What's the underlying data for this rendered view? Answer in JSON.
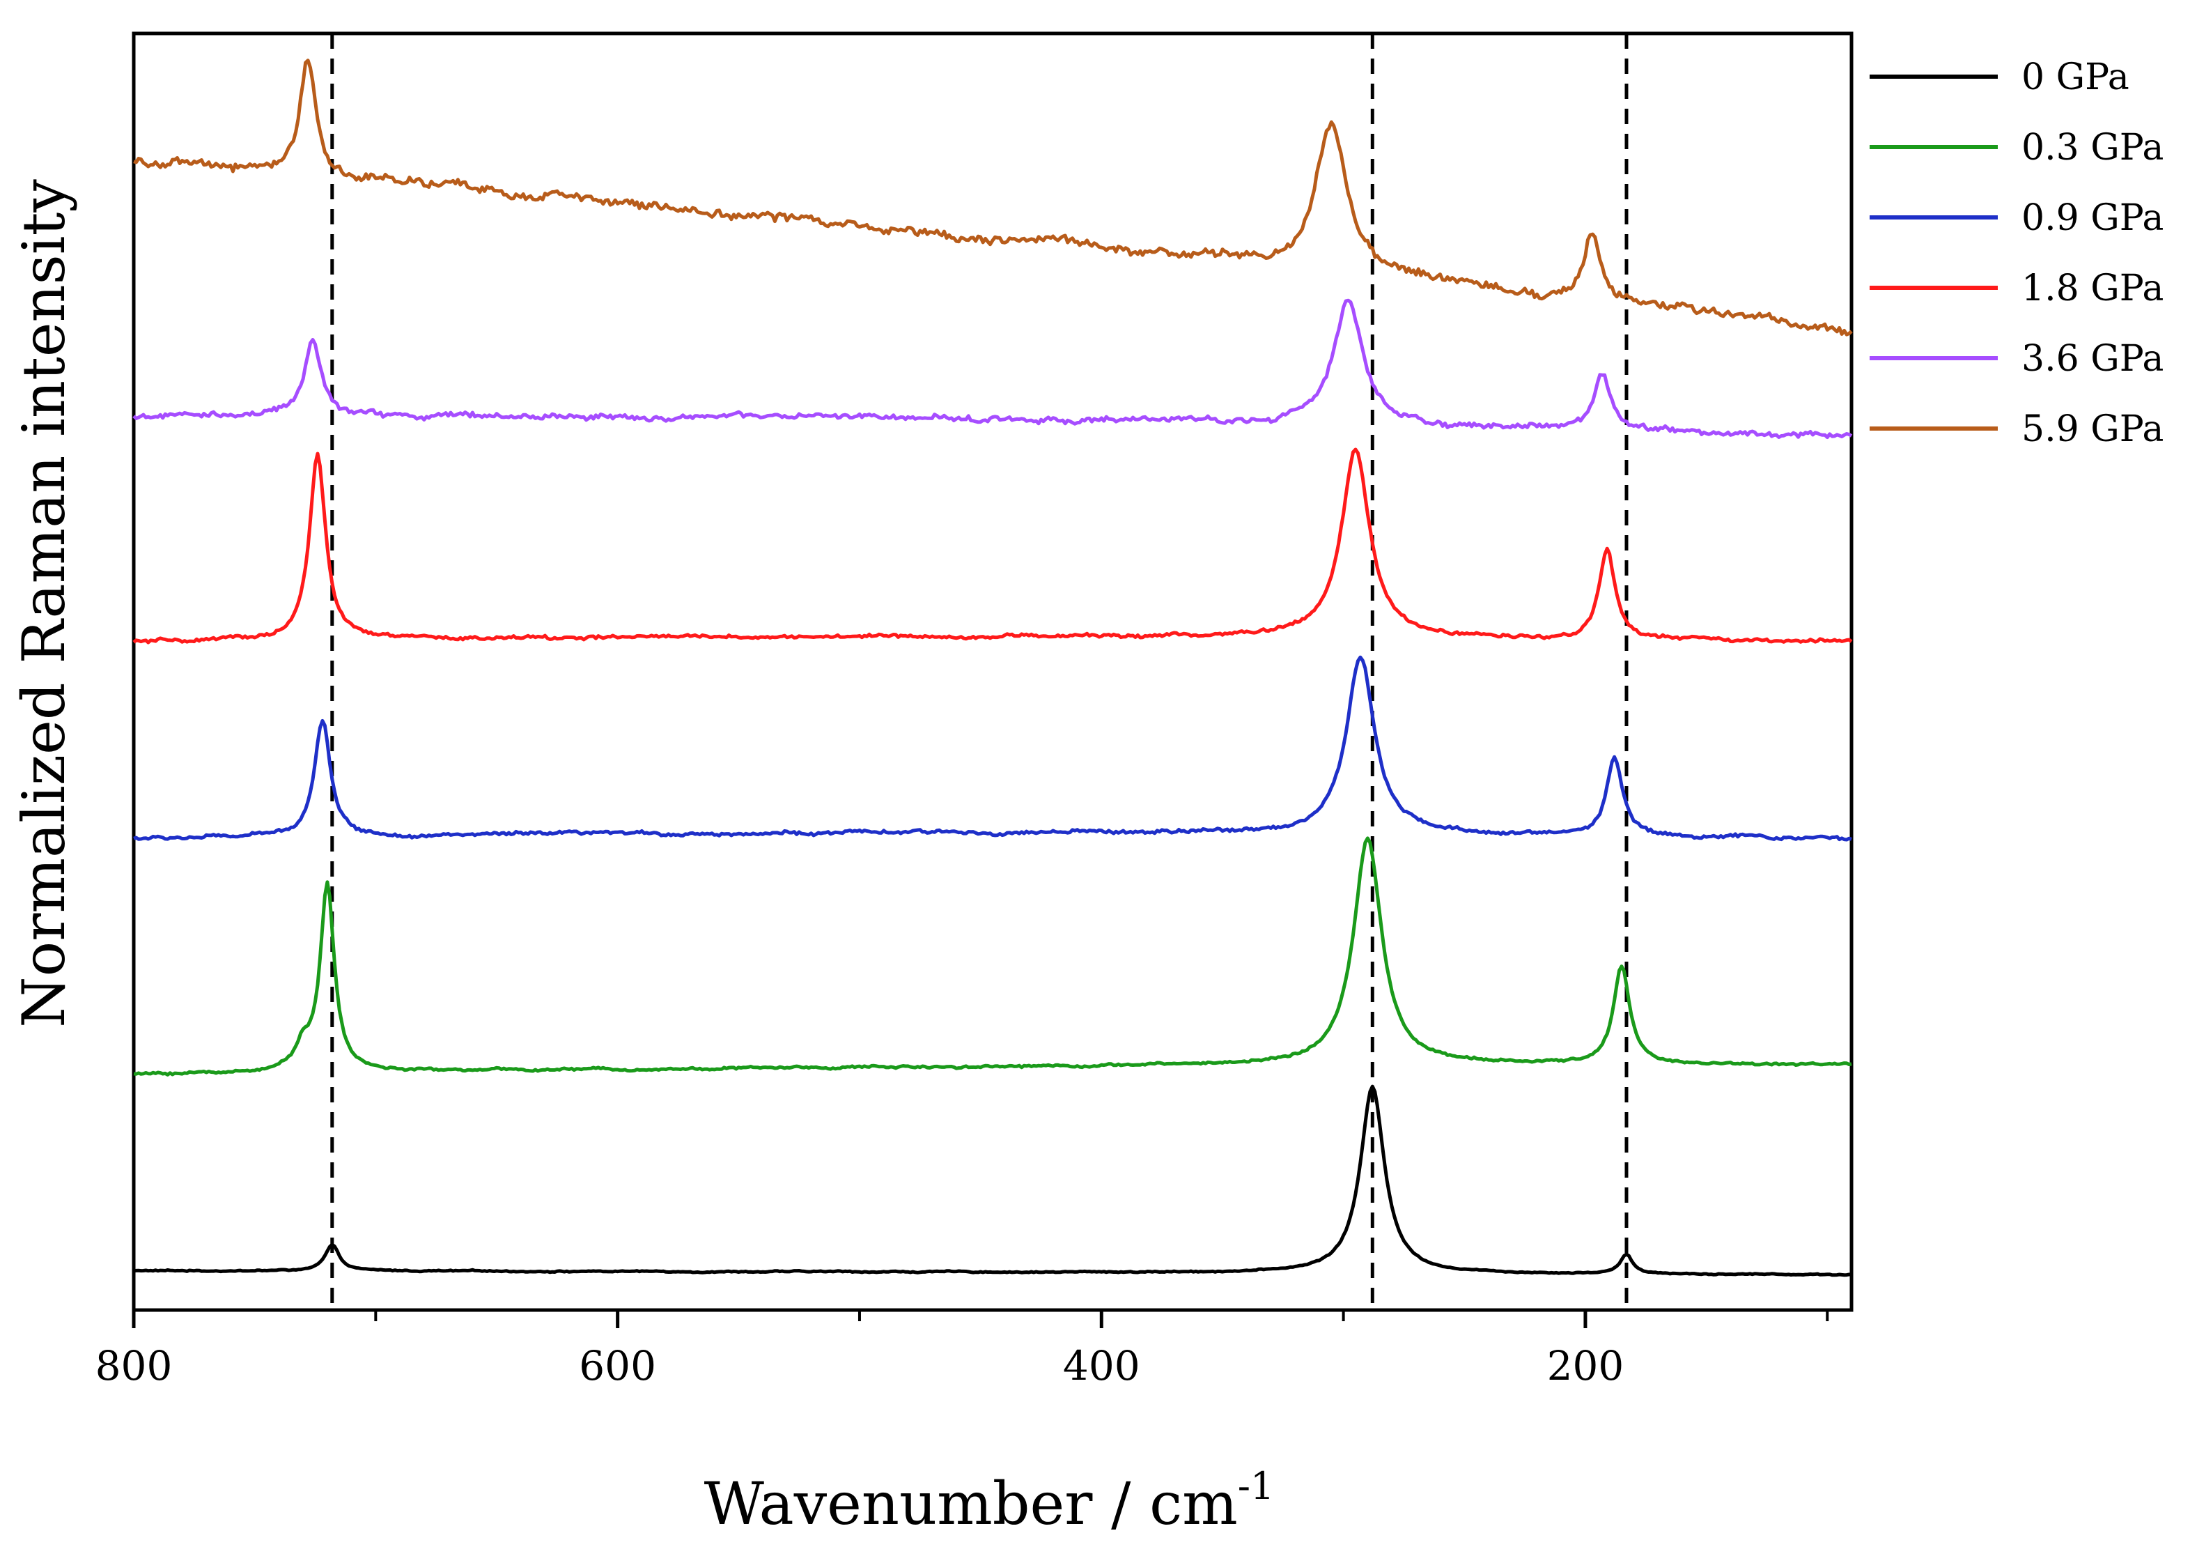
{
  "chart_data": {
    "type": "line",
    "title": "",
    "xlabel": "Wavenumber / cm",
    "xlabel_superscript": "-1",
    "ylabel": "Normalized Raman intensity",
    "xlim": [
      800,
      90
    ],
    "ylim": [
      0,
      6.5
    ],
    "x_ticks": [
      800,
      600,
      400,
      200
    ],
    "x_tick_labels": [
      "800",
      "600",
      "400",
      "200"
    ],
    "x_minor_ticks": [
      700,
      500,
      300,
      100
    ],
    "reference_lines": [
      718,
      288,
      183
    ],
    "grid": false,
    "legend_position": "outside-right-top",
    "series": [
      {
        "name": "0 GPa",
        "color": "#000000",
        "baseline": 0.2,
        "baseline_end": 0.18,
        "noise": 0.004,
        "tilt": -0.01,
        "peaks": [
          [
            718,
            0.13,
            3.5
          ],
          [
            288,
            0.95,
            6
          ],
          [
            183,
            0.1,
            3
          ]
        ]
      },
      {
        "name": "0.3 GPa",
        "color": "#1a9a1a",
        "baseline": 1.2,
        "baseline_end": 1.25,
        "noise": 0.008,
        "tilt": -0.05,
        "peaks": [
          [
            720,
            0.95,
            3.5
          ],
          [
            730,
            0.12,
            4
          ],
          [
            290,
            1.15,
            7
          ],
          [
            185,
            0.5,
            4
          ]
        ]
      },
      {
        "name": "0.9 GPa",
        "color": "#1e2fc8",
        "baseline": 2.4,
        "baseline_end": 2.4,
        "noise": 0.012,
        "tilt": -0.1,
        "peaks": [
          [
            722,
            0.6,
            4
          ],
          [
            293,
            0.9,
            7
          ],
          [
            188,
            0.4,
            4
          ]
        ]
      },
      {
        "name": "1.8 GPa",
        "color": "#ff1a1a",
        "baseline": 3.4,
        "baseline_end": 3.4,
        "noise": 0.012,
        "tilt": -0.1,
        "peaks": [
          [
            724,
            0.95,
            4
          ],
          [
            295,
            0.95,
            7
          ],
          [
            191,
            0.45,
            4
          ]
        ]
      },
      {
        "name": "3.6 GPa",
        "color": "#a64dff",
        "baseline": 4.55,
        "baseline_end": 4.45,
        "noise": 0.02,
        "tilt": -0.12,
        "peaks": [
          [
            726,
            0.4,
            4
          ],
          [
            298,
            0.65,
            7
          ],
          [
            193,
            0.3,
            4
          ]
        ]
      },
      {
        "name": "5.9 GPa",
        "color": "#b85c1a",
        "baseline": 5.85,
        "baseline_end": 5.0,
        "noise": 0.03,
        "tilt": -0.12,
        "peaks": [
          [
            728,
            0.6,
            4
          ],
          [
            305,
            0.75,
            8
          ],
          [
            197,
            0.35,
            4
          ]
        ]
      }
    ]
  }
}
